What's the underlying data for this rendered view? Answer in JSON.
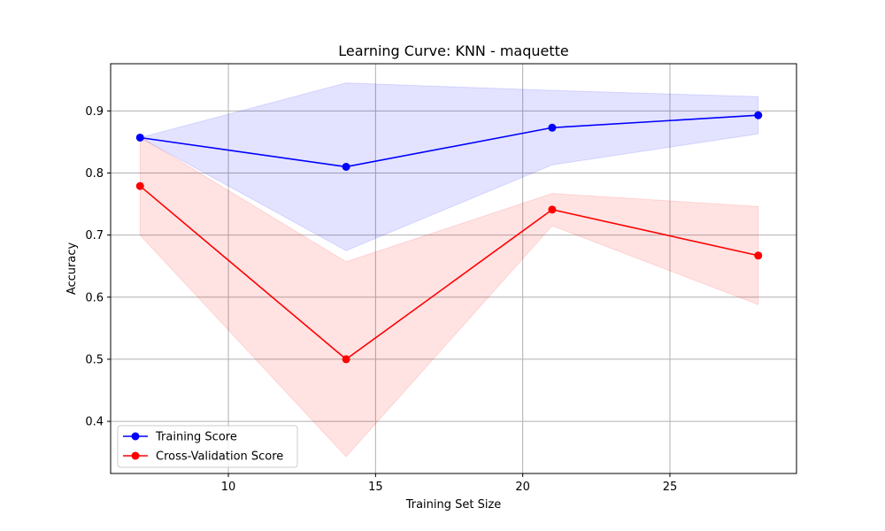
{
  "chart_data": {
    "type": "line",
    "title": "Learning Curve: KNN - maquette",
    "xlabel": "Training Set Size",
    "ylabel": "Accuracy",
    "xlim": [
      6,
      29.3
    ],
    "ylim": [
      0.316,
      0.976
    ],
    "xticks": [
      10,
      15,
      20,
      25
    ],
    "yticks": [
      0.4,
      0.5,
      0.6,
      0.7,
      0.8,
      0.9
    ],
    "grid": true,
    "legend_position": "lower-left",
    "x": [
      7,
      14,
      21,
      28
    ],
    "series": [
      {
        "name": "Training Score",
        "color": "#0000ff",
        "values": [
          0.857,
          0.81,
          0.873,
          0.893
        ],
        "band_upper": [
          0.857,
          0.945,
          0.933,
          0.923
        ],
        "band_lower": [
          0.857,
          0.675,
          0.813,
          0.863
        ]
      },
      {
        "name": "Cross-Validation Score",
        "color": "#ff0000",
        "values": [
          0.779,
          0.5,
          0.741,
          0.667
        ],
        "band_upper": [
          0.858,
          0.657,
          0.767,
          0.746
        ],
        "band_lower": [
          0.7,
          0.343,
          0.715,
          0.588
        ]
      }
    ]
  }
}
